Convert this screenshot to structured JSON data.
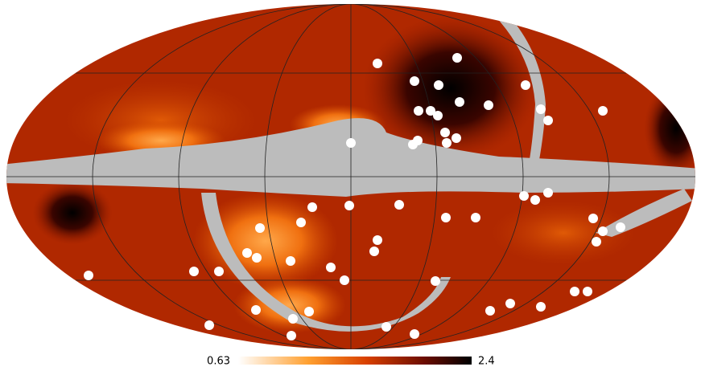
{
  "colorbar": {
    "min": 0.63,
    "max": 2.4
  }
}
